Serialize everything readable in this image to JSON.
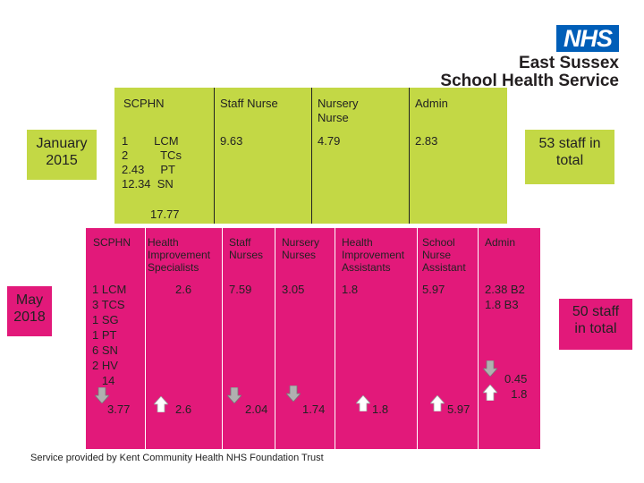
{
  "brand": {
    "logo_text": "NHS",
    "line1": "East Sussex",
    "line2": "School Health Service"
  },
  "y2015": {
    "period": "January\n2015",
    "headers": [
      "SCPHN",
      "Staff Nurse",
      "Nursery\nNurse",
      "Admin"
    ],
    "scphn_detail": "1        LCM\n2          TCs\n2.43     PT\n12.34  SN",
    "values": [
      "9.63",
      "4.79",
      "2.83"
    ],
    "scphn_total": "17.77",
    "total": "53 staff in\ntotal"
  },
  "y2018": {
    "period": "May\n2018",
    "headers": [
      "SCPHN",
      "Health\nImprovement\nSpecialists",
      "Staff\nNurses",
      "Nursery\nNurses",
      "Health\nImprovement\nAssistants",
      "School\nNurse\nAssistant",
      "Admin"
    ],
    "scphn_detail": "1 LCM\n3 TCS\n1 SG\n1 PT\n6 SN\n2 HV\n   14",
    "values": [
      "2.6",
      "7.59",
      "3.05",
      "1.8",
      "5.97",
      "2.38 B2\n1.8 B3"
    ],
    "changes": [
      {
        "value": "3.77",
        "direction": "down"
      },
      {
        "value": "2.6",
        "direction": "up"
      },
      {
        "value": "2.04",
        "direction": "down"
      },
      {
        "value": "1.74",
        "direction": "down"
      },
      {
        "value": "1.8",
        "direction": "up"
      },
      {
        "value": "5.97",
        "direction": "up"
      },
      {
        "value": "0.45\n1.8",
        "direction": "down-up"
      }
    ],
    "total": "50 staff\nin total"
  },
  "footer": "Service provided by Kent Community Health NHS Foundation Trust",
  "colors": {
    "green": "#c3d845",
    "pink": "#e2197a",
    "nhs_blue": "#005EB8",
    "arrow_down": "#b0b0b0",
    "arrow_up": "#ffffff"
  },
  "icons": {
    "down": "arrow-down-icon",
    "up": "arrow-up-icon"
  }
}
